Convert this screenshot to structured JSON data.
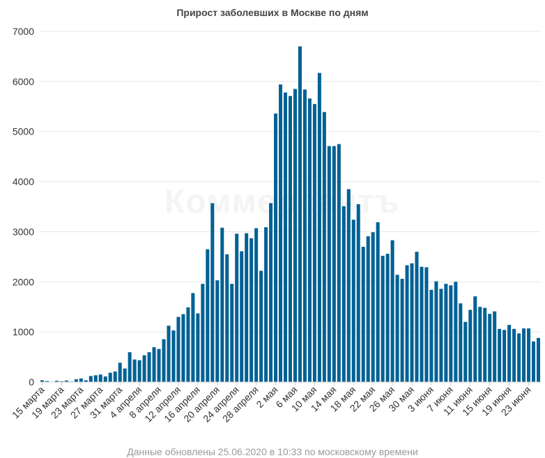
{
  "watermark_text": "Коммерсантъ",
  "footer": "Данные обновлены 25.06.2020 в 10:33 по московскому времени",
  "chart_data": {
    "type": "bar",
    "title": "Прирост заболевших в Москве по дням",
    "xlabel": "",
    "ylabel": "",
    "ylim": [
      0,
      7000
    ],
    "yticks": [
      0,
      1000,
      2000,
      3000,
      4000,
      5000,
      6000,
      7000
    ],
    "bar_color": "#006195",
    "grid": true,
    "legend": "none",
    "x_tick_labels": [
      "15 марта",
      "19 марта",
      "23 марта",
      "27 марта",
      "31 марта",
      "4 апреля",
      "8 апреля",
      "12 апреля",
      "16 апреля",
      "20 апреля",
      "24 апреля",
      "28 апреля",
      "2 мая",
      "6 мая",
      "10 мая",
      "14 мая",
      "18 мая",
      "22 мая",
      "26 мая",
      "30 мая",
      "3 июня",
      "7 июня",
      "11 июня",
      "15 июня",
      "19 июня",
      "23 июня"
    ],
    "first_date": "15 марта",
    "last_date": "25 июня",
    "values": [
      35,
      20,
      5,
      25,
      15,
      30,
      10,
      55,
      70,
      35,
      120,
      135,
      150,
      110,
      185,
      210,
      385,
      270,
      595,
      450,
      435,
      535,
      595,
      695,
      660,
      855,
      1125,
      1030,
      1300,
      1355,
      1490,
      1775,
      1370,
      1960,
      2650,
      3570,
      2030,
      3080,
      2550,
      1960,
      2960,
      2610,
      2970,
      2870,
      3070,
      2220,
      3090,
      3570,
      5360,
      5940,
      5780,
      5710,
      5850,
      6700,
      5840,
      5660,
      5550,
      6170,
      5390,
      4710,
      4710,
      4750,
      3510,
      3850,
      3240,
      3550,
      2700,
      2910,
      2990,
      3190,
      2520,
      2560,
      2830,
      2140,
      2060,
      2330,
      2370,
      2600,
      2300,
      2290,
      1840,
      2010,
      1860,
      1960,
      1930,
      2000,
      1570,
      1200,
      1440,
      1710,
      1500,
      1480,
      1360,
      1410,
      1060,
      1040,
      1140,
      1060,
      970,
      1070,
      1070,
      810,
      880
    ]
  }
}
